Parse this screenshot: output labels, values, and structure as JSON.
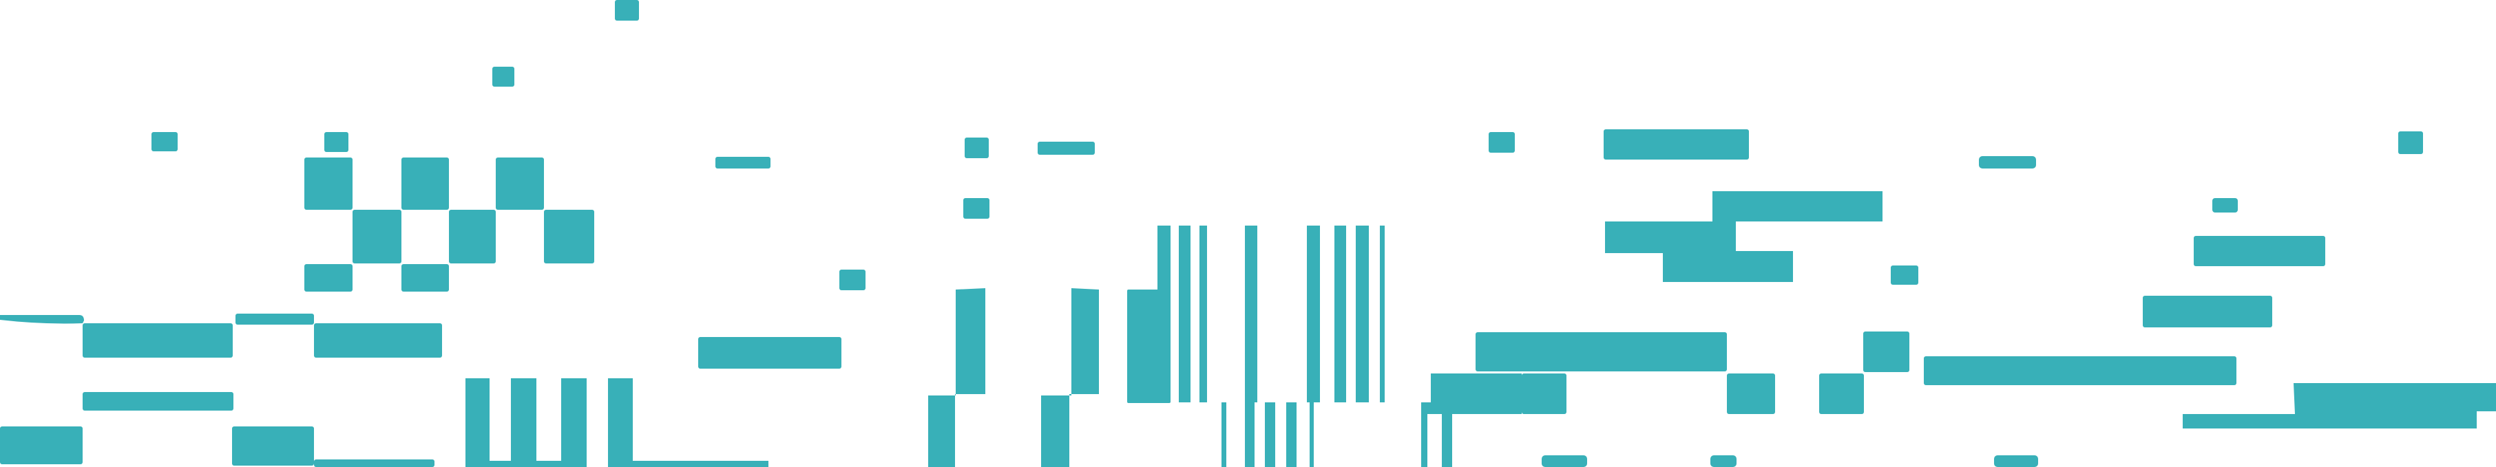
{
  "colors": {
    "background": "#ffffff",
    "block": "#38b0b8"
  }
}
